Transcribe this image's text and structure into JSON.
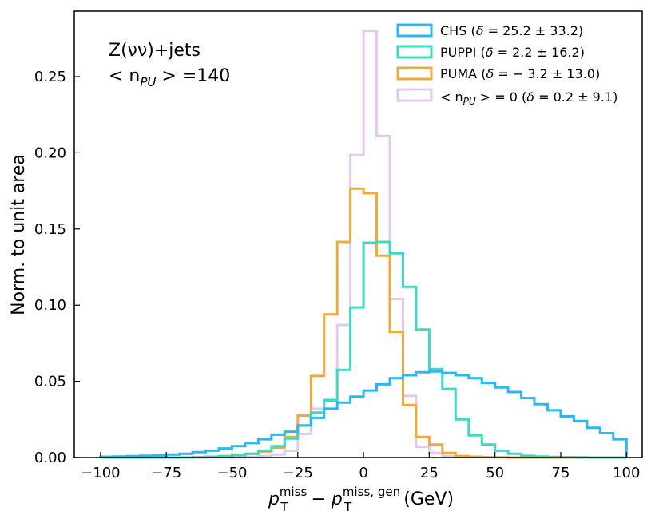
{
  "chart_data": {
    "type": "histogram",
    "bin_edges": [
      -100,
      -95,
      -90,
      -85,
      -80,
      -75,
      -70,
      -65,
      -60,
      -55,
      -50,
      -45,
      -40,
      -35,
      -30,
      -25,
      -20,
      -15,
      -10,
      -5,
      0,
      5,
      10,
      15,
      20,
      25,
      30,
      35,
      40,
      45,
      50,
      55,
      60,
      65,
      70,
      75,
      80,
      85,
      90,
      95,
      100
    ],
    "xlim": [
      -110,
      106
    ],
    "ylim": [
      0,
      0.293
    ],
    "xticks": [
      -100,
      -75,
      -50,
      -25,
      0,
      25,
      50,
      75,
      100
    ],
    "yticks": [
      0.0,
      0.05,
      0.1,
      0.15,
      0.2,
      0.25
    ],
    "xtick_labels": [
      "−100",
      "−75",
      "−50",
      "−25",
      "0",
      "25",
      "50",
      "75",
      "100"
    ],
    "ytick_labels": [
      "0.00",
      "0.05",
      "0.10",
      "0.15",
      "0.20",
      "0.25"
    ],
    "xlabel": {
      "p": "p",
      "T": "T",
      "miss": "miss",
      "minus": " − ",
      "miss_gen": "miss, gen",
      "unit": " (GeV)"
    },
    "ylabel": "Norm. to unit area",
    "annotation": {
      "line1": "Z(νν)+jets",
      "line2_open": "< n",
      "line2_sub": "PU",
      "line2_close": " > =140"
    },
    "series": [
      {
        "name": "CHS (δ = 25.2 ± 33.2)",
        "color": "#2ab8f0",
        "values": [
          0.0005,
          0.0007,
          0.0009,
          0.0012,
          0.0015,
          0.002,
          0.0025,
          0.0035,
          0.0045,
          0.006,
          0.0075,
          0.0095,
          0.012,
          0.015,
          0.017,
          0.021,
          0.026,
          0.032,
          0.036,
          0.04,
          0.044,
          0.048,
          0.052,
          0.054,
          0.056,
          0.0565,
          0.0555,
          0.054,
          0.052,
          0.049,
          0.046,
          0.043,
          0.039,
          0.035,
          0.031,
          0.027,
          0.024,
          0.0195,
          0.016,
          0.012
        ]
      },
      {
        "name": "PUPPI (δ = 2.2 ± 16.2)",
        "color": "#3dd9c2",
        "values": [
          0,
          0,
          0,
          0,
          0,
          0,
          0,
          0.0002,
          0.0005,
          0.001,
          0.0015,
          0.0025,
          0.0045,
          0.0075,
          0.0125,
          0.021,
          0.0295,
          0.0375,
          0.0575,
          0.0985,
          0.141,
          0.1415,
          0.134,
          0.112,
          0.084,
          0.058,
          0.045,
          0.025,
          0.0145,
          0.0085,
          0.0045,
          0.0025,
          0.0012,
          0.0007,
          0.0004,
          0.0002,
          0.0001,
          0,
          0,
          0
        ]
      },
      {
        "name": "PUMA (δ = −3.2 ± 13.0)",
        "color": "#f2a93b",
        "values": [
          0,
          0,
          0,
          0,
          0,
          0,
          0,
          0.0002,
          0.0005,
          0.0008,
          0.0015,
          0.0025,
          0.004,
          0.0065,
          0.0135,
          0.0275,
          0.0535,
          0.094,
          0.1415,
          0.1765,
          0.1735,
          0.1325,
          0.0825,
          0.0345,
          0.0135,
          0.0085,
          0.003,
          0.001,
          0.0005,
          0.0002,
          0.0001,
          0,
          0,
          0,
          0,
          0,
          0,
          0,
          0,
          0
        ]
      },
      {
        "name": "< n_PU > = 0 (δ = 0.2 ± 9.1)",
        "color": "#e3c8f1",
        "values": [
          0,
          0,
          0,
          0,
          0,
          0,
          0,
          0,
          0,
          0,
          0,
          0.0005,
          0.001,
          0.002,
          0.0045,
          0.0155,
          0.032,
          0.038,
          0.087,
          0.1985,
          0.28,
          0.211,
          0.104,
          0.0405,
          0.007,
          0.003,
          0.001,
          0.0004,
          0.0002,
          0.0001,
          0,
          0,
          0,
          0,
          0,
          0,
          0,
          0,
          0,
          0
        ]
      }
    ],
    "legend": [
      {
        "pre": "CHS (",
        "delta": "δ",
        "post": " = 25.2 ± 33.2)"
      },
      {
        "pre": "PUPPI (",
        "delta": "δ",
        "post": " = 2.2 ± 16.2)"
      },
      {
        "pre": "PUMA (",
        "delta": "δ",
        "post": " = − 3.2 ± 13.0)"
      },
      {
        "pre": "< n",
        "sub": "PU",
        "mid": " > = 0 (",
        "delta": "δ",
        "post": " = 0.2 ± 9.1)"
      }
    ],
    "legend_loc": "upper right"
  }
}
